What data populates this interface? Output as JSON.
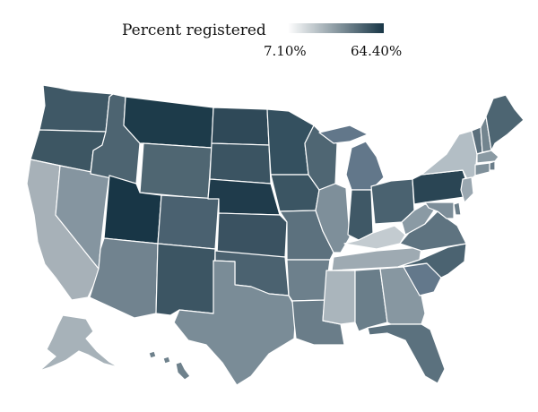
{
  "legend": {
    "title": "Percent registered",
    "min_label": "7.10%",
    "max_label": "64.40%",
    "color_low": "#ffffff",
    "color_high": "#183646"
  },
  "states": [
    {
      "id": "wa",
      "name": "Washington",
      "color": "#3f5866"
    },
    {
      "id": "or",
      "name": "Oregon",
      "color": "#3d5663"
    },
    {
      "id": "ca",
      "name": "California",
      "color": "#a7b1b8"
    },
    {
      "id": "nv",
      "name": "Nevada",
      "color": "#8595a0"
    },
    {
      "id": "id",
      "name": "Idaho",
      "color": "#4d6471"
    },
    {
      "id": "mt",
      "name": "Montana",
      "color": "#1d3b4a"
    },
    {
      "id": "wy",
      "name": "Wyoming",
      "color": "#4f6672"
    },
    {
      "id": "ut",
      "name": "Utah",
      "color": "#183646"
    },
    {
      "id": "az",
      "name": "Arizona",
      "color": "#71838f"
    },
    {
      "id": "co",
      "name": "Colorado",
      "color": "#4a6170"
    },
    {
      "id": "nm",
      "name": "New Mexico",
      "color": "#3c5563"
    },
    {
      "id": "nd",
      "name": "North Dakota",
      "color": "#2f4958"
    },
    {
      "id": "sd",
      "name": "South Dakota",
      "color": "#3b5462"
    },
    {
      "id": "ne",
      "name": "Nebraska",
      "color": "#1f3b4b"
    },
    {
      "id": "ks",
      "name": "Kansas",
      "color": "#3a5261"
    },
    {
      "id": "ok",
      "name": "Oklahoma",
      "color": "#4b6270"
    },
    {
      "id": "tx",
      "name": "Texas",
      "color": "#7a8c97"
    },
    {
      "id": "mn",
      "name": "Minnesota",
      "color": "#34505f"
    },
    {
      "id": "ia",
      "name": "Iowa",
      "color": "#3b5563"
    },
    {
      "id": "mo",
      "name": "Missouri",
      "color": "#5c717e"
    },
    {
      "id": "ar",
      "name": "Arkansas",
      "color": "#6d808c"
    },
    {
      "id": "la",
      "name": "Louisiana",
      "color": "#6a7d89"
    },
    {
      "id": "wi",
      "name": "Wisconsin",
      "color": "#4f6673"
    },
    {
      "id": "il",
      "name": "Illinois",
      "color": "#7e8f9a"
    },
    {
      "id": "mi",
      "name": "Michigan",
      "color": "#62778a"
    },
    {
      "id": "in",
      "name": "Indiana",
      "color": "#3f5866"
    },
    {
      "id": "oh",
      "name": "Ohio",
      "color": "#4a6270"
    },
    {
      "id": "ky",
      "name": "Kentucky",
      "color": "#c3cbd0"
    },
    {
      "id": "tn",
      "name": "Tennessee",
      "color": "#9eaab2"
    },
    {
      "id": "ms",
      "name": "Mississippi",
      "color": "#aab5bc"
    },
    {
      "id": "al",
      "name": "Alabama",
      "color": "#6a7e8a"
    },
    {
      "id": "ga",
      "name": "Georgia",
      "color": "#8797a1"
    },
    {
      "id": "fl",
      "name": "Florida",
      "color": "#5b717e"
    },
    {
      "id": "sc",
      "name": "South Carolina",
      "color": "#63788b"
    },
    {
      "id": "nc",
      "name": "North Carolina",
      "color": "#4b6371"
    },
    {
      "id": "va",
      "name": "Virginia",
      "color": "#5e7380"
    },
    {
      "id": "wv",
      "name": "West Virginia",
      "color": "#8a9aa4"
    },
    {
      "id": "pa",
      "name": "Pennsylvania",
      "color": "#2a4554"
    },
    {
      "id": "ny",
      "name": "New York",
      "color": "#b3bec5"
    },
    {
      "id": "vt",
      "name": "Vermont",
      "color": "#5b6f7c"
    },
    {
      "id": "nh",
      "name": "New Hampshire",
      "color": "#73858f"
    },
    {
      "id": "me",
      "name": "Maine",
      "color": "#4d6572"
    },
    {
      "id": "ma",
      "name": "Massachusetts",
      "color": "#8a9aa3"
    },
    {
      "id": "ct",
      "name": "Connecticut",
      "color": "#7f909a"
    },
    {
      "id": "ri",
      "name": "Rhode Island",
      "color": "#6a7d89"
    },
    {
      "id": "nj",
      "name": "New Jersey",
      "color": "#9aa7b0"
    },
    {
      "id": "de",
      "name": "Delaware",
      "color": "#6b7e89"
    },
    {
      "id": "md",
      "name": "Maryland",
      "color": "#7d8e99"
    },
    {
      "id": "ak",
      "name": "Alaska",
      "color": "#a7b2b9"
    },
    {
      "id": "hi",
      "name": "Hawaii",
      "color": "#6e818c"
    }
  ]
}
